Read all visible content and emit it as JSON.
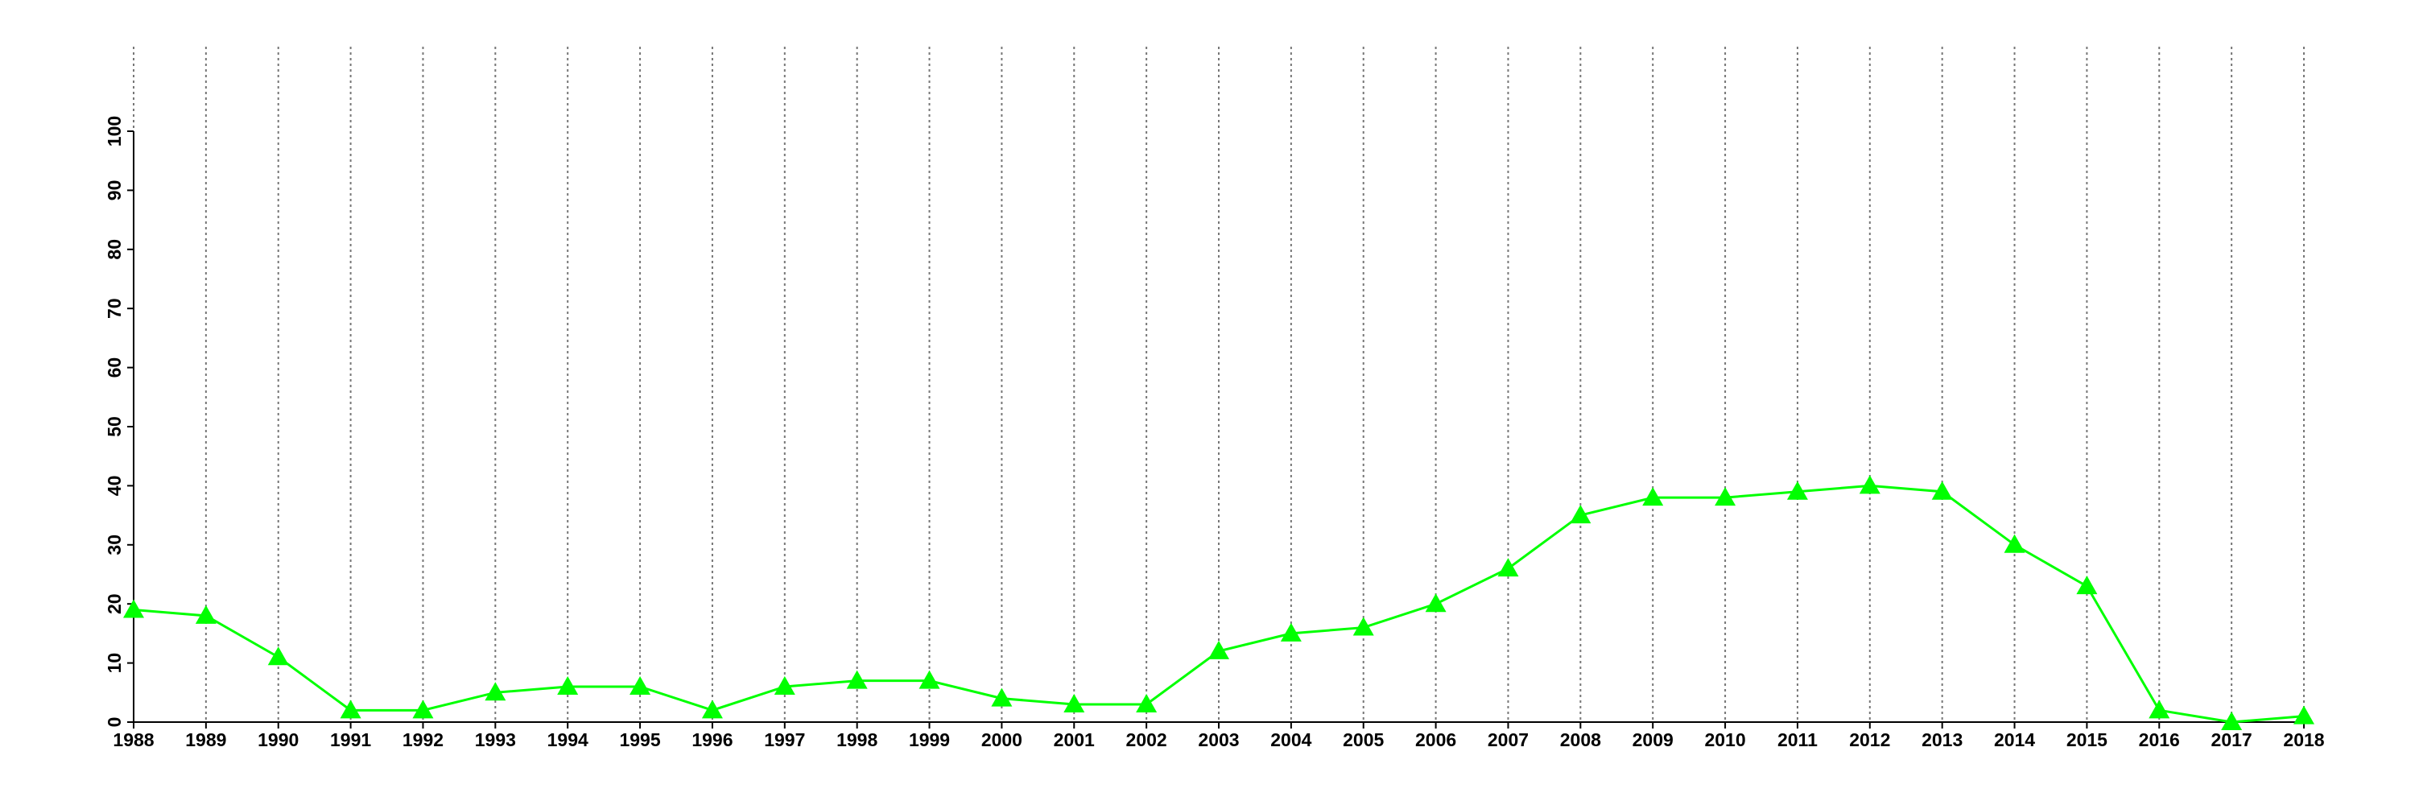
{
  "chart_data": {
    "type": "line",
    "categories": [
      "1988",
      "1989",
      "1990",
      "1991",
      "1992",
      "1993",
      "1994",
      "1995",
      "1996",
      "1997",
      "1998",
      "1999",
      "2000",
      "2001",
      "2002",
      "2003",
      "2004",
      "2005",
      "2006",
      "2007",
      "2008",
      "2009",
      "2010",
      "2011",
      "2012",
      "2013",
      "2014",
      "2015",
      "2016",
      "2017",
      "2018"
    ],
    "series": [
      {
        "color": "#00ff00",
        "values": [
          19,
          18,
          11,
          2,
          2,
          5,
          6,
          6,
          2,
          6,
          7,
          7,
          4,
          3,
          3,
          12,
          15,
          16,
          20,
          26,
          35,
          38,
          38,
          39,
          40,
          39,
          30,
          23,
          2,
          0,
          1
        ]
      }
    ],
    "ylim": [
      0,
      100
    ],
    "yticks": [
      0,
      10,
      20,
      30,
      40,
      50,
      60,
      70,
      80,
      90,
      100
    ],
    "grid": true
  }
}
